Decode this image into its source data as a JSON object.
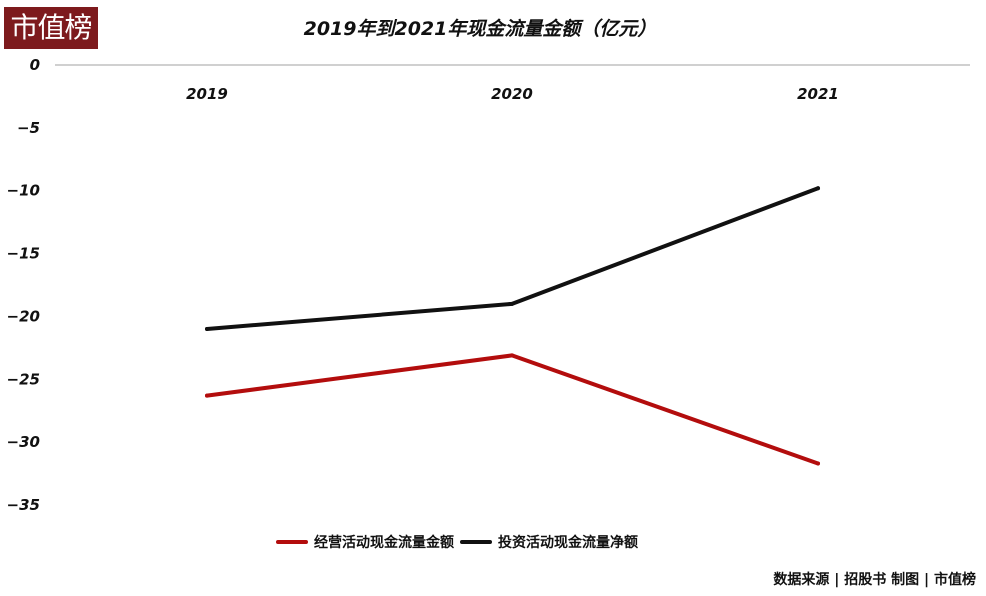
{
  "logo": "市值榜",
  "source": "数据来源 | 招股书 制图 | 市值榜",
  "chart_data": {
    "type": "line",
    "title": "2019年到2021年现金流量金额（亿元）",
    "categories": [
      "2019",
      "2020",
      "2021"
    ],
    "series": [
      {
        "name": "经营活动现金流量金额",
        "color": "#b30d0d",
        "values": [
          -26.3,
          -23.1,
          -31.7
        ]
      },
      {
        "name": "投资活动现金流量净额",
        "color": "#111111",
        "values": [
          -21,
          -19,
          -9.8
        ]
      }
    ],
    "yticks": [
      0,
      -5,
      -10,
      -15,
      -20,
      -25,
      -30,
      -35
    ],
    "ylim": [
      -35,
      0
    ],
    "grid": false,
    "legend": "bottom",
    "xlabel": "",
    "ylabel": ""
  }
}
